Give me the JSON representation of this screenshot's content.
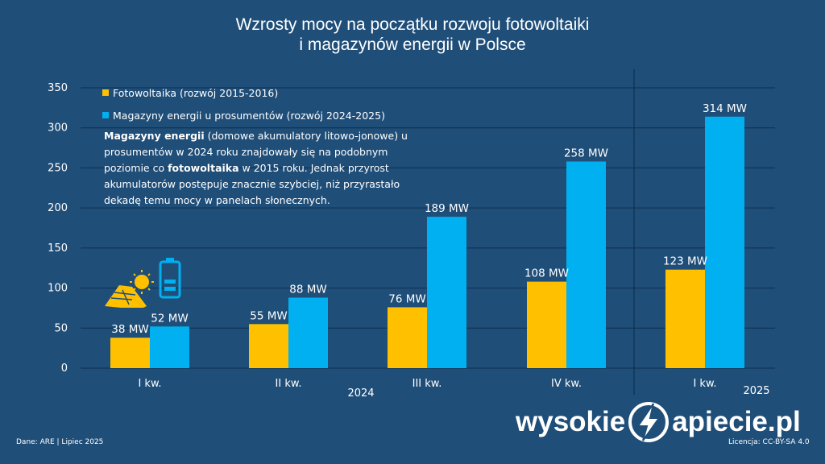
{
  "title_line1": "Wzrosty mocy na początku rozwoju fotowoltaiki",
  "title_line2": "i magazynów energii w Polsce",
  "legend": {
    "pv": "Fotowoltaika (rozwój 2015-2016)",
    "storage": "Magazyny energii u prosumentów (rozwój 2024-2025)"
  },
  "note": {
    "bold1": "Magazyny energii",
    "text1": " (domowe akumulatory litowo-jonowe) u prosumentów w 2024 roku znajdowały się na podobnym poziomie co ",
    "bold2": "fotowoltaika",
    "text2": " w 2015 roku. Jednak przyrost akumulatorów postępuje znacznie szybciej, niż przyrastało dekadę temu mocy w panelach słonecznych."
  },
  "footer": {
    "source": "Dane: ARE   |   Lipiec 2025",
    "license": "Licencja: CC-BY-SA 4.0"
  },
  "logo": {
    "left": "wysokie",
    "right": "apiecie.pl"
  },
  "colors": {
    "background": "#1f4e79",
    "pv": "#ffc000",
    "storage": "#00b0f0",
    "grid": "#0d2f4f"
  },
  "icons": [
    "solar-panel-icon",
    "battery-icon",
    "lightning-bolt-icon"
  ],
  "chart_data": {
    "type": "bar",
    "categories": [
      "I kw.",
      "II kw.",
      "III kw.",
      "IV kw.",
      "I kw."
    ],
    "year_labels": [
      "2024",
      "2025"
    ],
    "series": [
      {
        "name": "Fotowoltaika (rozwój 2015-2016)",
        "values": [
          38,
          55,
          76,
          108,
          123
        ],
        "labels": [
          "38 MW",
          "55 MW",
          "76 MW",
          "108 MW",
          "123 MW"
        ]
      },
      {
        "name": "Magazyny energii u prosumentów (rozwój 2024-2025)",
        "values": [
          52,
          88,
          189,
          258,
          314
        ],
        "labels": [
          "52 MW",
          "88 MW",
          "189 MW",
          "258 MW",
          "314 MW"
        ]
      }
    ],
    "yticks": [
      "0",
      "50",
      "100",
      "150",
      "200",
      "250",
      "300",
      "350"
    ],
    "ylim": [
      0,
      350
    ],
    "grid": true,
    "legend_position": "top-left"
  }
}
